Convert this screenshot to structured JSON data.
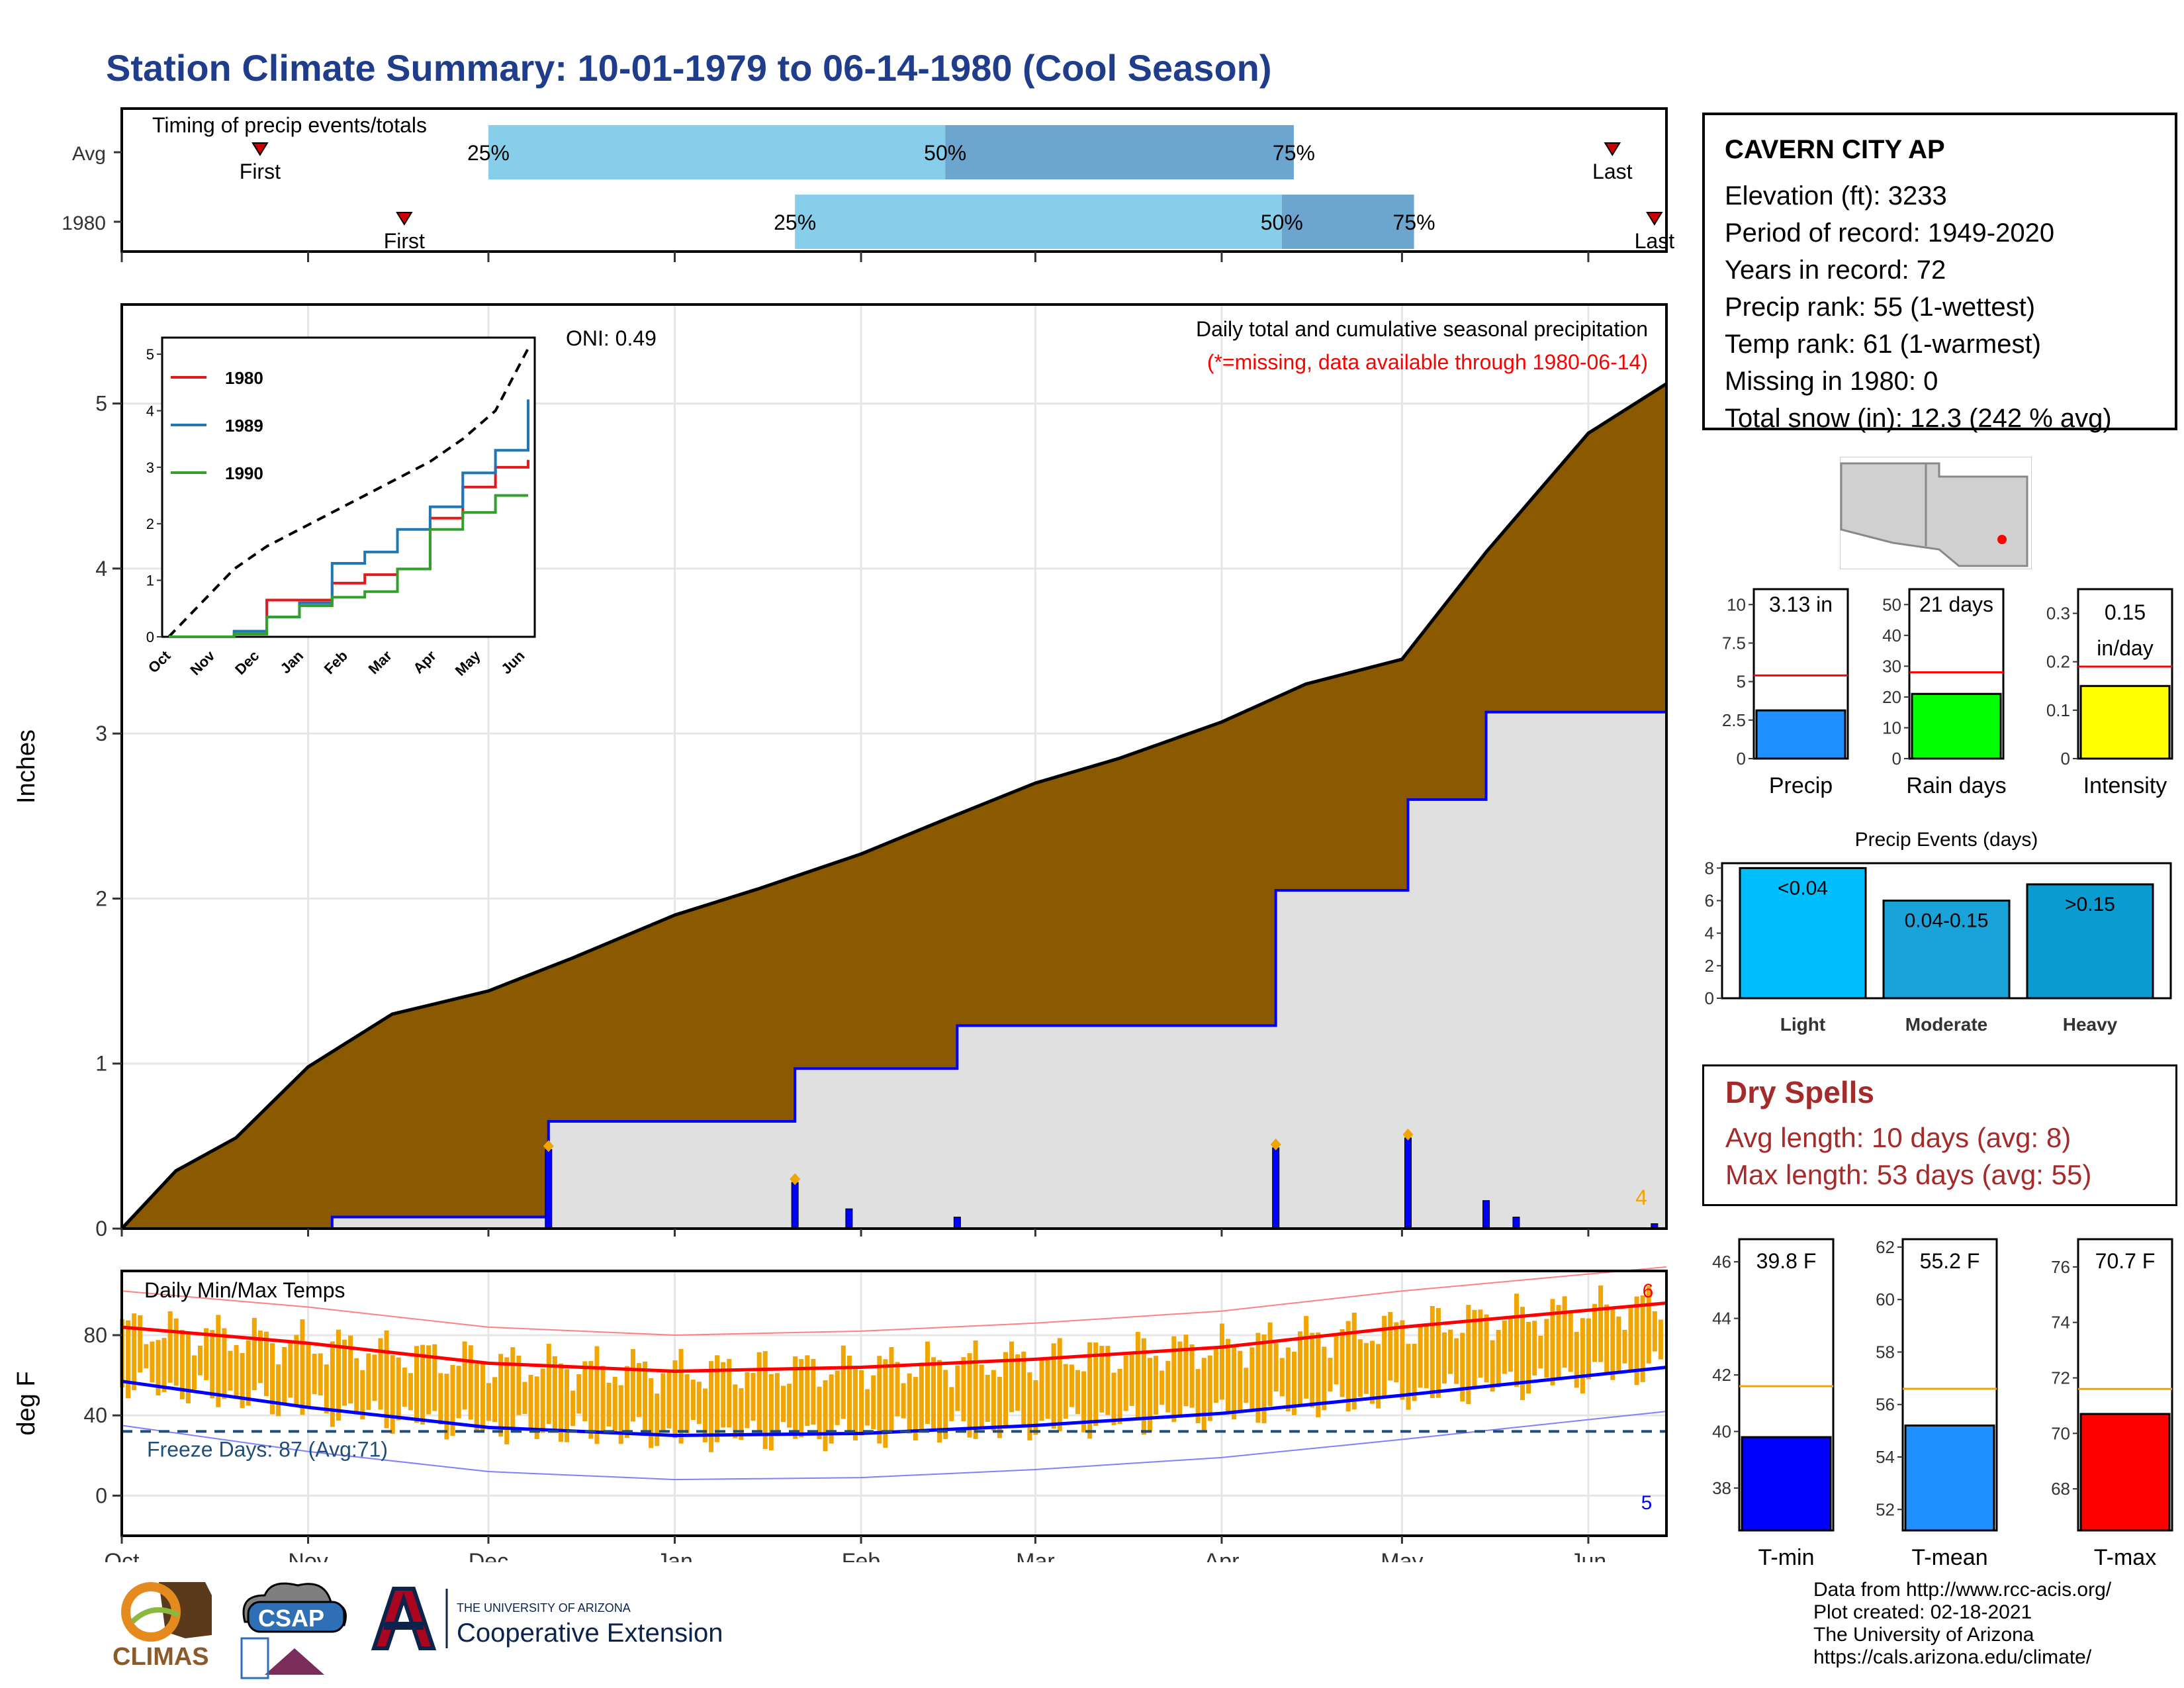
{
  "title": "Station Climate Summary: 10-01-1979 to 06-14-1980 (Cool Season)",
  "timing": {
    "label": "Timing of precip events/totals",
    "rows": [
      {
        "name": "Avg",
        "first": "First",
        "last": "Last",
        "p25": "25%",
        "p50": "50%",
        "p75": "75%"
      },
      {
        "name": "1980",
        "first": "First",
        "last": "Last",
        "p25": "25%",
        "p50": "50%",
        "p75": "75%"
      }
    ]
  },
  "station": {
    "name": "CAVERN CITY AP",
    "lines": [
      "Elevation (ft): 3233",
      "Period of record: 1949-2020",
      "Years in record: 72",
      "Precip rank: 55 (1-wettest)",
      "Temp rank: 61 (1-warmest)",
      "Missing in 1980: 0",
      "Total snow (in): 12.3 (242 % avg)"
    ]
  },
  "precip_main": {
    "oni": "ONI: 0.49",
    "header": "Daily total and cumulative seasonal precipitation",
    "missing_note": "(*=missing, data available through 1980-06-14)",
    "ylabel": "Inches",
    "count_label": "4"
  },
  "temps": {
    "label": "Daily Min/Max Temps",
    "ylabel": "deg F",
    "freeze": "Freeze Days: 87 (Avg:71)",
    "count_max": "6",
    "count_min": "5"
  },
  "dry_spells": {
    "title": "Dry Spells",
    "avg": "Avg length: 10 days (avg: 8)",
    "max": "Max length: 53 days (avg: 55)"
  },
  "footer": {
    "lines": [
      "Data from http://www.rcc-acis.org/",
      "Plot created: 02-18-2021",
      "The University of Arizona",
      "https://cals.arizona.edu/climate/"
    ]
  },
  "logos": {
    "climas": "CLIMAS",
    "csap": "CSAP",
    "ua_small": "THE UNIVERSITY OF ARIZONA",
    "ua_big": "Cooperative Extension"
  },
  "colors": {
    "title": "#1f3d8a",
    "cumulative_avg": "#8b5a00",
    "cumulative_year": "#e0e0e0",
    "year_line": "#0000ff",
    "light_blue": "#87ceeb",
    "mid_blue": "#6ca5cd",
    "temp_bar": "#f0a500",
    "freeze": "#1f4e79"
  },
  "chart_data": [
    {
      "type": "table",
      "name": "timing",
      "rows": [
        {
          "row": "Avg",
          "first": "1979-10-24",
          "p25": "1979-12-01",
          "p50": "1980-02-15",
          "p75": "1980-04-13",
          "last": "1980-06-05"
        },
        {
          "row": "1980",
          "first": "1979-11-17",
          "p25": "1980-01-21",
          "p50": "1980-04-11",
          "p75": "1980-05-03",
          "last": "1980-06-12"
        }
      ]
    },
    {
      "type": "area",
      "name": "cumulative-precip",
      "ylabel": "Inches",
      "ylim": [
        0,
        5.6
      ],
      "x_ticks": [
        "Oct",
        "Nov",
        "Dec",
        "Jan",
        "Feb",
        "Mar",
        "Apr",
        "May",
        "Jun"
      ],
      "y_ticks": [
        0,
        1,
        2,
        3,
        4,
        5
      ],
      "avg_cumulative": {
        "x": [
          "1979-10-01",
          "1979-10-10",
          "1979-10-20",
          "1979-11-01",
          "1979-11-15",
          "1979-12-01",
          "1979-12-15",
          "1980-01-01",
          "1980-01-15",
          "1980-02-01",
          "1980-02-15",
          "1980-03-01",
          "1980-03-15",
          "1980-04-01",
          "1980-04-15",
          "1980-05-01",
          "1980-05-15",
          "1980-06-01",
          "1980-06-14"
        ],
        "y": [
          0,
          0.35,
          0.55,
          0.98,
          1.3,
          1.44,
          1.64,
          1.9,
          2.06,
          2.27,
          2.48,
          2.7,
          2.85,
          3.07,
          3.3,
          3.45,
          4.1,
          4.82,
          5.12
        ]
      },
      "year_cumulative": {
        "x": [
          "1979-10-01",
          "1979-11-05",
          "1979-12-11",
          "1980-01-21",
          "1980-02-17",
          "1980-04-10",
          "1980-05-02",
          "1980-05-15",
          "1980-06-14"
        ],
        "y": [
          0,
          0.07,
          0.65,
          0.97,
          1.23,
          2.05,
          2.6,
          3.13,
          3.13
        ]
      },
      "daily_events": [
        {
          "x": "1979-12-11",
          "y": 0.48
        },
        {
          "x": "1980-01-21",
          "y": 0.28
        },
        {
          "x": "1980-01-30",
          "y": 0.12
        },
        {
          "x": "1980-02-17",
          "y": 0.07
        },
        {
          "x": "1980-04-10",
          "y": 0.49
        },
        {
          "x": "1980-05-02",
          "y": 0.55
        },
        {
          "x": "1980-05-15",
          "y": 0.17
        },
        {
          "x": "1980-05-20",
          "y": 0.07
        },
        {
          "x": "1980-06-12",
          "y": 0.03
        }
      ],
      "series": [
        {
          "name": "Average",
          "values": "avg_cumulative"
        },
        {
          "name": "1980",
          "values": "year_cumulative"
        }
      ]
    },
    {
      "type": "line",
      "name": "inset-comparison",
      "x_ticks": [
        "Oct",
        "Nov",
        "Dec",
        "Jan",
        "Feb",
        "Mar",
        "Apr",
        "May",
        "Jun"
      ],
      "y_ticks": [
        0,
        1,
        2,
        3,
        4,
        5
      ],
      "series": [
        {
          "name": "1980",
          "color": "#e31a1c",
          "y": [
            0,
            0,
            0.05,
            0.65,
            0.65,
            0.95,
            1.1,
            1.2,
            2.1,
            2.65,
            3.0,
            3.13
          ]
        },
        {
          "name": "1989",
          "color": "#1f78b4",
          "y": [
            0,
            0,
            0.1,
            0.35,
            0.6,
            1.3,
            1.5,
            1.9,
            2.3,
            2.9,
            3.3,
            4.2
          ]
        },
        {
          "name": "1990",
          "color": "#33a02c",
          "y": [
            0,
            0,
            0.05,
            0.35,
            0.55,
            0.7,
            0.8,
            1.2,
            1.9,
            2.2,
            2.5,
            2.5
          ]
        }
      ],
      "reference": {
        "name": "Average",
        "y": [
          0,
          0.6,
          1.2,
          1.6,
          1.9,
          2.2,
          2.5,
          2.8,
          3.1,
          3.5,
          4.0,
          5.1
        ]
      }
    },
    {
      "type": "bar",
      "name": "temperature-range",
      "ylabel": "deg F",
      "ylim": [
        -20,
        112
      ],
      "y_ticks": [
        0,
        40,
        80
      ],
      "freeze_line": 32,
      "avg_tmax": {
        "x": [
          "1979-10-01",
          "1979-11-01",
          "1979-12-01",
          "1980-01-01",
          "1980-02-01",
          "1980-03-01",
          "1980-04-01",
          "1980-05-01",
          "1980-06-14"
        ],
        "y": [
          84,
          76,
          66,
          62,
          64,
          68,
          74,
          84,
          96
        ]
      },
      "avg_tmin": {
        "x": [
          "1979-10-01",
          "1979-11-01",
          "1979-12-01",
          "1980-01-01",
          "1980-02-01",
          "1980-03-01",
          "1980-04-01",
          "1980-05-01",
          "1980-06-14"
        ],
        "y": [
          57,
          44,
          34,
          30,
          31,
          35,
          41,
          50,
          64
        ]
      }
    },
    {
      "type": "bar",
      "name": "season-summary",
      "categories": [
        "Precip",
        "Rain days",
        "Intensity"
      ],
      "values": [
        3.13,
        21,
        0.15
      ],
      "averages": [
        5.4,
        28,
        0.19
      ],
      "labels": [
        "3.13 in",
        "21 days",
        "0.15 in/day"
      ]
    },
    {
      "type": "bar",
      "name": "precip-events",
      "title": "Precip Events (days)",
      "categories": [
        "Light",
        "Moderate",
        "Heavy"
      ],
      "values": [
        8,
        6,
        7
      ],
      "labels": [
        "<0.04",
        "0.04-0.15",
        ">0.15"
      ]
    },
    {
      "type": "bar",
      "name": "temp-summary",
      "categories": [
        "T-min",
        "T-mean",
        "T-max"
      ],
      "values": [
        39.8,
        55.2,
        70.7
      ],
      "averages": [
        41.6,
        56.6,
        71.6
      ],
      "labels": [
        "39.8 F",
        "55.2 F",
        "70.7 F"
      ]
    }
  ]
}
